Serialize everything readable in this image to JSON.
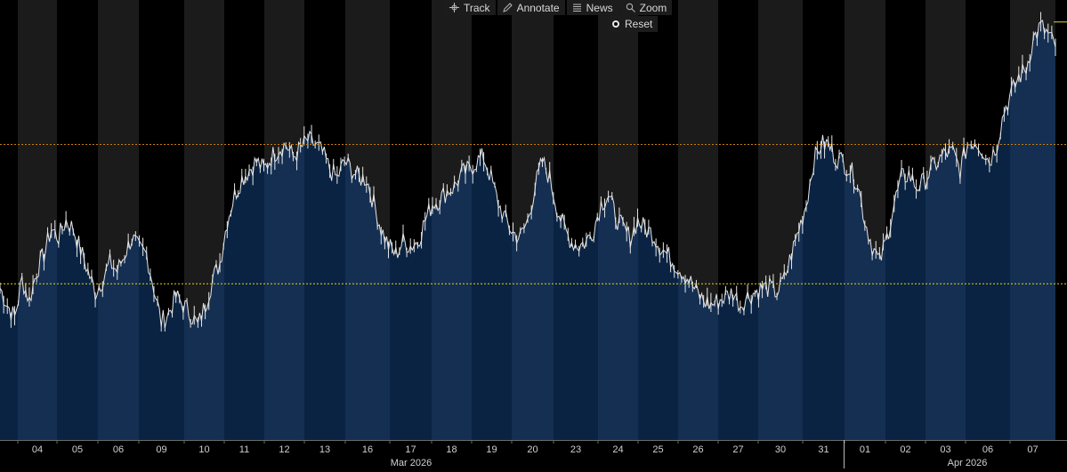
{
  "toolbar": {
    "track": "Track",
    "annotate": "Annotate",
    "news": "News",
    "zoom": "Zoom",
    "reset": "Reset"
  },
  "colors": {
    "background": "#000000",
    "shaded_band": "#1b1b1b",
    "area_fill": "#0a2342",
    "area_fill_alt": "#152f52",
    "price_line": "#e6e6e6",
    "orange_line": "#c87f0a",
    "yellow_line": "#e6d21e",
    "axis_text": "#d0d0d0"
  },
  "chart_data": {
    "type": "area",
    "title": "",
    "xlabel": "",
    "ylabel": "",
    "y_axis_labels": "none",
    "x_tick_labels": [
      "04",
      "05",
      "06",
      "09",
      "10",
      "11",
      "12",
      "13",
      "16",
      "17",
      "18",
      "19",
      "20",
      "23",
      "24",
      "25",
      "26",
      "27",
      "30",
      "31",
      "01",
      "02",
      "03",
      "06",
      "07"
    ],
    "month_labels": [
      "Mar 2026",
      "Apr 2026"
    ],
    "ylim": [
      0,
      100
    ],
    "reference_lines": [
      {
        "style": "dotted",
        "color": "orange",
        "value": 70
      },
      {
        "style": "dotted",
        "color": "yellow",
        "value": 37
      }
    ],
    "last_value_marker": 99,
    "series": [
      {
        "values": [
          [
            36,
            32,
            29,
            38,
            33,
            40,
            44,
            50,
            48,
            52,
            50,
            45,
            40,
            35,
            38,
            42,
            40,
            44,
            48,
            45
          ],
          [
            44,
            36,
            28,
            30,
            34,
            32,
            30,
            27,
            32,
            38
          ],
          [
            42,
            52,
            58,
            62,
            64,
            66,
            64,
            67,
            69,
            70
          ],
          [
            67,
            69,
            71,
            70,
            68,
            64,
            62,
            66,
            64,
            62
          ],
          [
            62,
            56,
            50,
            46,
            44,
            47,
            46,
            47,
            52,
            56
          ],
          [
            57,
            59,
            60,
            63,
            64,
            66,
            67,
            62,
            56,
            52
          ],
          [
            49,
            48,
            52,
            60,
            66,
            62,
            55,
            50,
            47,
            46
          ],
          [
            47,
            50,
            56,
            58,
            53,
            50,
            48,
            52,
            50,
            49
          ],
          [
            46,
            44,
            42,
            40,
            38,
            35,
            33,
            32,
            33,
            34
          ],
          [
            35,
            32,
            34,
            35,
            36,
            36,
            35,
            38,
            44,
            50
          ],
          [
            56,
            66,
            70,
            70,
            67,
            66,
            64,
            61,
            52,
            46
          ],
          [
            42,
            48,
            56,
            62,
            63,
            60,
            61,
            64,
            66,
            68
          ],
          [
            68,
            64,
            70,
            71,
            69,
            66,
            70,
            78,
            82,
            86,
            88,
            95,
            98,
            96,
            93
          ]
        ]
      }
    ]
  }
}
